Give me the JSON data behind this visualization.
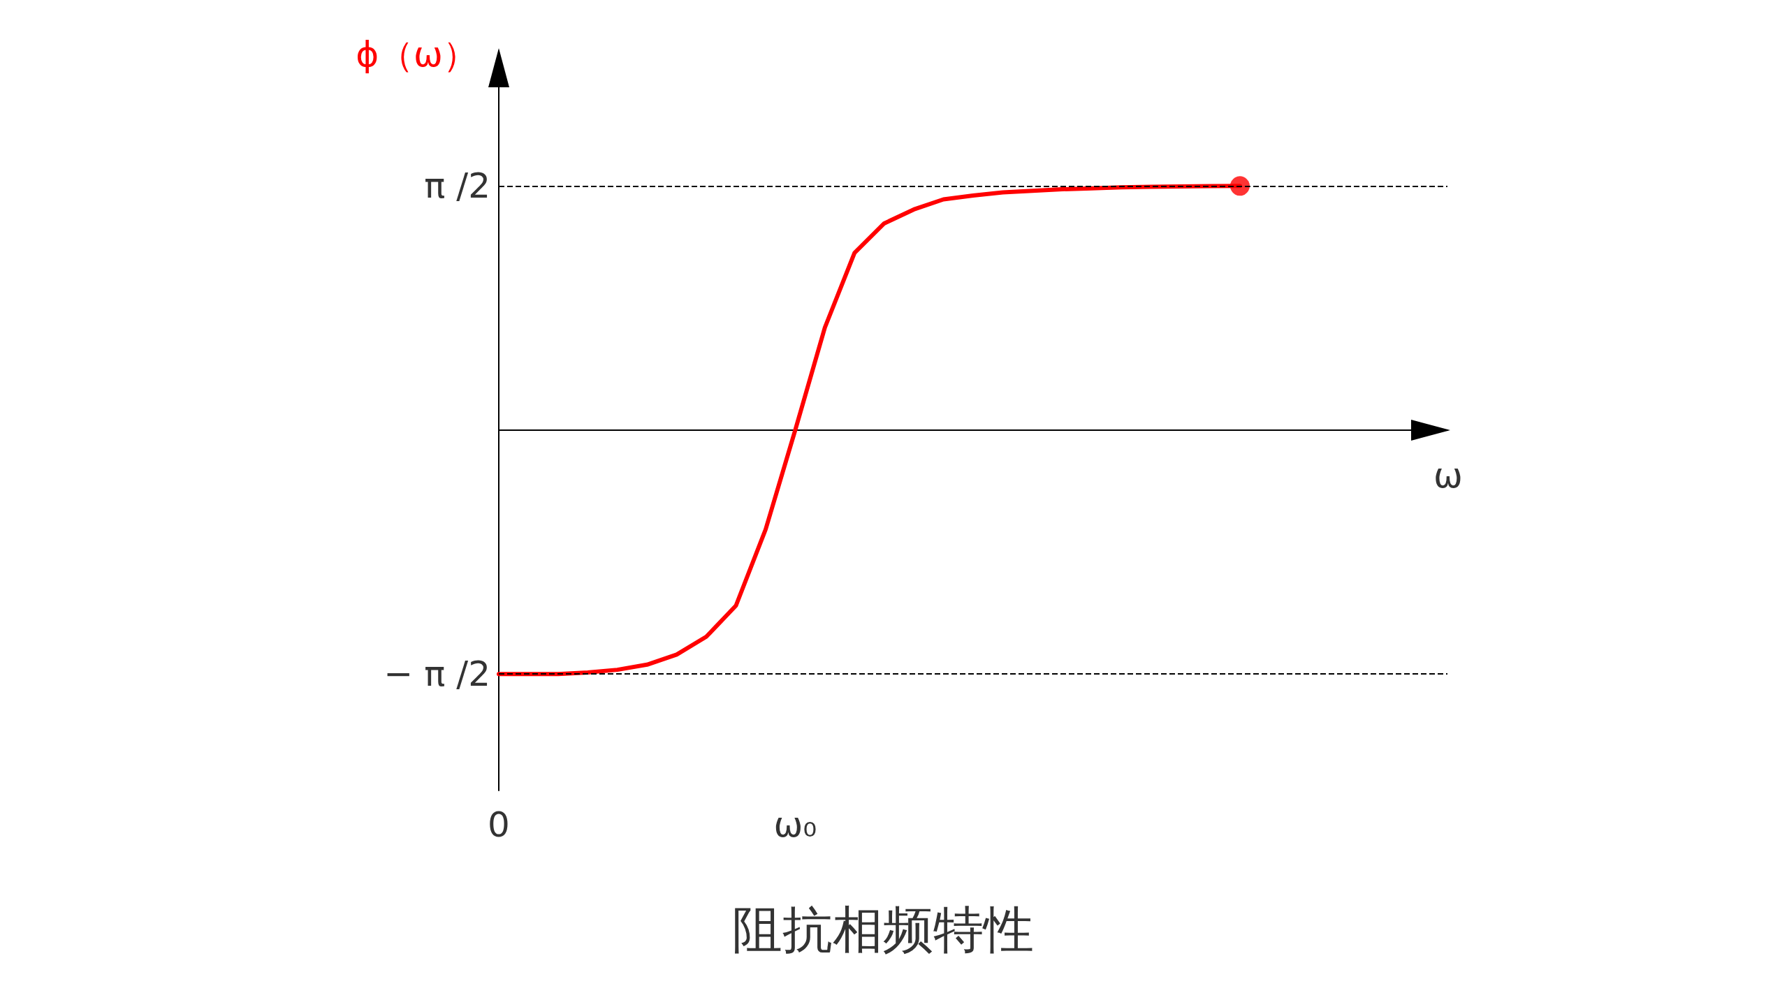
{
  "chart_data": {
    "type": "line",
    "title": "阻抗相频特性",
    "xlabel": "ω",
    "ylabel": "ϕ（ω）",
    "categories": [
      "0",
      null,
      null,
      null,
      null,
      null,
      null,
      null,
      null,
      null,
      "ω₀",
      null,
      null,
      null,
      null,
      null,
      null,
      null,
      null,
      null,
      null,
      null,
      null,
      null,
      null,
      null,
      null,
      null,
      null,
      null,
      null,
      null,
      null
    ],
    "ylim": [
      -2.32,
      2.44
    ],
    "yticks": [
      {
        "value": -1.571,
        "label": "− π /2"
      },
      {
        "value": 1.571,
        "label": "π /2"
      }
    ],
    "series": [
      {
        "color": "#ff0000",
        "marker": "none",
        "values": [
          -1.571,
          -1.571,
          -1.571,
          -1.56,
          -1.543,
          -1.51,
          -1.445,
          -1.33,
          -1.13,
          -0.64,
          0,
          0.66,
          1.14,
          1.33,
          1.42,
          1.485,
          1.51,
          1.53,
          1.54,
          1.55,
          1.556,
          1.562,
          1.566,
          1.568,
          1.57,
          1.571,
          null,
          null,
          null,
          null,
          null,
          null,
          null
        ]
      },
      {
        "type": "scatter",
        "color": "#ff0000",
        "marker": "circle",
        "values": [
          null,
          null,
          null,
          null,
          null,
          null,
          null,
          null,
          null,
          null,
          null,
          null,
          null,
          null,
          null,
          null,
          null,
          null,
          null,
          null,
          null,
          null,
          null,
          null,
          null,
          1.571,
          null,
          null,
          null,
          null,
          null,
          null,
          null
        ]
      }
    ],
    "ref_lines": [
      {
        "axis": "y",
        "value": 1.571,
        "color": "#000000",
        "line_style": "dashed"
      },
      {
        "axis": "y",
        "value": -1.571,
        "color": "#000000",
        "line_style": "dashed"
      }
    ],
    "grid": false,
    "line_style": "solid"
  }
}
